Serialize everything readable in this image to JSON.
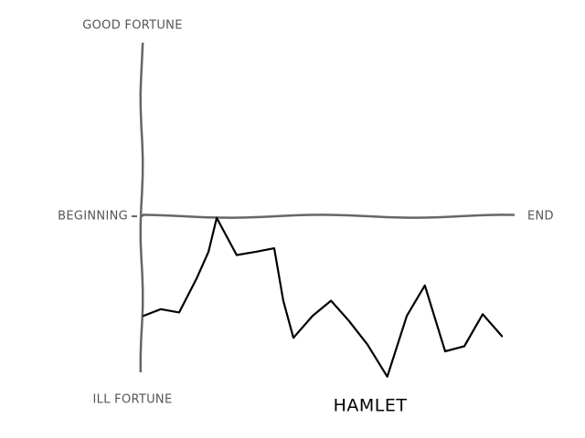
{
  "chart_data": {
    "type": "line",
    "title": "HAMLET",
    "y_top_label": "GOOD FORTUNE",
    "y_bottom_label": "ILL FORTUNE",
    "x_start_label": "BEGINNING",
    "x_end_label": "END",
    "x": [
      0,
      4.6,
      9.5,
      14.1,
      17.3,
      19.5,
      24.8,
      29.9,
      34.8,
      37.2,
      39.9,
      45.0,
      49.9,
      54.7,
      59.6,
      64.9,
      70.1,
      74.9,
      80.3,
      85.4,
      90.3,
      95.4
    ],
    "values": [
      -0.59,
      -0.55,
      -0.57,
      -0.37,
      -0.21,
      -0.01,
      -0.23,
      -0.21,
      -0.19,
      -0.5,
      -0.72,
      -0.59,
      -0.5,
      -0.62,
      -0.76,
      -0.95,
      -0.59,
      -0.41,
      -0.8,
      -0.77,
      -0.58,
      -0.71
    ],
    "color": "#000000",
    "axis_color": "#666666",
    "xlim": [
      0,
      100
    ],
    "ylim": [
      -1,
      1
    ]
  }
}
